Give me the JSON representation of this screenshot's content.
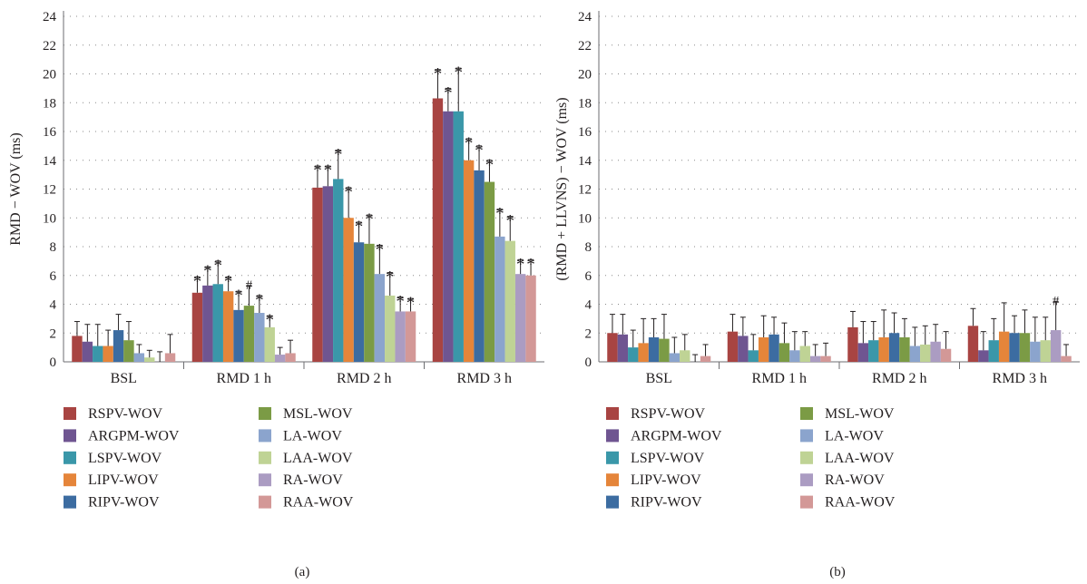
{
  "series_names": [
    "RSPV-WOV",
    "ARGPM-WOV",
    "LSPV-WOV",
    "LIPV-WOV",
    "RIPV-WOV",
    "MSL-WOV",
    "LA-WOV",
    "LAA-WOV",
    "RA-WOV",
    "RAA-WOV"
  ],
  "colors": [
    "#a84442",
    "#6f5591",
    "#3a97a9",
    "#e5853a",
    "#3c6ca1",
    "#7b9b45",
    "#8ba4cd",
    "#bfd395",
    "#ab9cc2",
    "#d39897"
  ],
  "chart_data": [
    {
      "type": "bar",
      "panel_label": "(a)",
      "ylabel": "RMD − WOV (ms)",
      "ylim": [
        0,
        24
      ],
      "yticks": [
        0,
        2,
        4,
        6,
        8,
        10,
        12,
        14,
        16,
        18,
        20,
        22,
        24
      ],
      "grid": true,
      "legend_position": "bottom",
      "categories": [
        "BSL",
        "RMD 1 h",
        "RMD 2 h",
        "RMD 3 h"
      ],
      "series": [
        {
          "name": "RSPV-WOV",
          "values": [
            1.8,
            4.8,
            12.1,
            18.3
          ],
          "errors": [
            1.0,
            1.1,
            1.5,
            2.0
          ],
          "marks": [
            "",
            "*",
            "*",
            "*"
          ]
        },
        {
          "name": "ARGPM-WOV",
          "values": [
            1.4,
            5.3,
            12.2,
            17.4
          ],
          "errors": [
            1.2,
            1.3,
            1.4,
            1.6
          ],
          "marks": [
            "",
            "*",
            "*",
            "*"
          ]
        },
        {
          "name": "LSPV-WOV",
          "values": [
            1.1,
            5.4,
            12.7,
            17.4
          ],
          "errors": [
            1.5,
            1.6,
            2.0,
            3.0
          ],
          "marks": [
            "",
            "*",
            "*",
            "*"
          ]
        },
        {
          "name": "LIPV-WOV",
          "values": [
            1.1,
            4.9,
            10.0,
            14.0
          ],
          "errors": [
            1.1,
            1.0,
            2.1,
            1.5
          ],
          "marks": [
            "",
            "*",
            "*",
            "*"
          ]
        },
        {
          "name": "RIPV-WOV",
          "values": [
            2.2,
            3.6,
            8.3,
            13.3
          ],
          "errors": [
            1.1,
            1.3,
            1.4,
            1.7
          ],
          "marks": [
            "",
            "*",
            "*",
            "*"
          ]
        },
        {
          "name": "MSL-WOV",
          "values": [
            1.5,
            3.9,
            8.2,
            12.5
          ],
          "errors": [
            1.3,
            1.4,
            2.0,
            1.5
          ],
          "marks": [
            "",
            "#",
            "*",
            "*"
          ]
        },
        {
          "name": "LA-WOV",
          "values": [
            0.6,
            3.4,
            6.1,
            8.7
          ],
          "errors": [
            0.6,
            1.2,
            2.0,
            1.9
          ],
          "marks": [
            "",
            "*",
            "*",
            "*"
          ]
        },
        {
          "name": "LAA-WOV",
          "values": [
            0.3,
            2.4,
            4.6,
            8.4
          ],
          "errors": [
            0.5,
            0.8,
            1.6,
            1.7
          ],
          "marks": [
            "",
            "*",
            "*",
            "*"
          ]
        },
        {
          "name": "RA-WOV",
          "values": [
            0.0,
            0.5,
            3.5,
            6.1
          ],
          "errors": [
            0.7,
            0.5,
            1.0,
            1.0
          ],
          "marks": [
            "",
            "",
            "*",
            "*"
          ]
        },
        {
          "name": "RAA-WOV",
          "values": [
            0.6,
            0.6,
            3.5,
            6.0
          ],
          "errors": [
            1.3,
            0.9,
            0.9,
            1.1
          ],
          "marks": [
            "",
            "",
            "*",
            "*"
          ]
        }
      ]
    },
    {
      "type": "bar",
      "panel_label": "(b)",
      "ylabel": "(RMD + LLVNS) − WOV (ms)",
      "ylim": [
        0,
        24
      ],
      "yticks": [
        0,
        2,
        4,
        6,
        8,
        10,
        12,
        14,
        16,
        18,
        20,
        22,
        24
      ],
      "grid": true,
      "legend_position": "bottom",
      "categories": [
        "BSL",
        "RMD 1 h",
        "RMD 2 h",
        "RMD 3 h"
      ],
      "series": [
        {
          "name": "RSPV-WOV",
          "values": [
            2.0,
            2.1,
            2.4,
            2.5
          ],
          "errors": [
            1.3,
            1.2,
            1.1,
            1.2
          ],
          "marks": [
            "",
            "",
            "",
            ""
          ]
        },
        {
          "name": "ARGPM-WOV",
          "values": [
            1.9,
            1.8,
            1.3,
            0.8
          ],
          "errors": [
            1.4,
            1.3,
            1.5,
            1.3
          ],
          "marks": [
            "",
            "",
            "",
            ""
          ]
        },
        {
          "name": "LSPV-WOV",
          "values": [
            1.0,
            0.8,
            1.5,
            1.5
          ],
          "errors": [
            1.2,
            1.1,
            1.3,
            1.5
          ],
          "marks": [
            "",
            "",
            "",
            ""
          ]
        },
        {
          "name": "LIPV-WOV",
          "values": [
            1.3,
            1.7,
            1.7,
            2.1
          ],
          "errors": [
            1.7,
            1.5,
            1.9,
            2.0
          ],
          "marks": [
            "",
            "",
            "",
            ""
          ]
        },
        {
          "name": "RIPV-WOV",
          "values": [
            1.7,
            1.9,
            2.0,
            2.0
          ],
          "errors": [
            1.3,
            1.2,
            1.4,
            1.2
          ],
          "marks": [
            "",
            "",
            "",
            ""
          ]
        },
        {
          "name": "MSL-WOV",
          "values": [
            1.6,
            1.3,
            1.7,
            2.0
          ],
          "errors": [
            1.7,
            1.4,
            1.3,
            1.6
          ],
          "marks": [
            "",
            "",
            "",
            ""
          ]
        },
        {
          "name": "LA-WOV",
          "values": [
            0.6,
            0.8,
            1.1,
            1.4
          ],
          "errors": [
            1.1,
            1.3,
            1.3,
            1.7
          ],
          "marks": [
            "",
            "",
            "",
            ""
          ]
        },
        {
          "name": "LAA-WOV",
          "values": [
            0.8,
            1.1,
            1.2,
            1.5
          ],
          "errors": [
            1.1,
            1.0,
            1.3,
            1.6
          ],
          "marks": [
            "",
            "",
            "",
            ""
          ]
        },
        {
          "name": "RA-WOV",
          "values": [
            0.0,
            0.4,
            1.4,
            2.2
          ],
          "errors": [
            0.5,
            0.8,
            1.2,
            2.0
          ],
          "marks": [
            "",
            "",
            "",
            "#"
          ]
        },
        {
          "name": "RAA-WOV",
          "values": [
            0.4,
            0.4,
            0.9,
            0.4
          ],
          "errors": [
            0.8,
            0.9,
            1.2,
            0.8
          ],
          "marks": [
            "",
            "",
            "",
            ""
          ]
        }
      ]
    }
  ]
}
